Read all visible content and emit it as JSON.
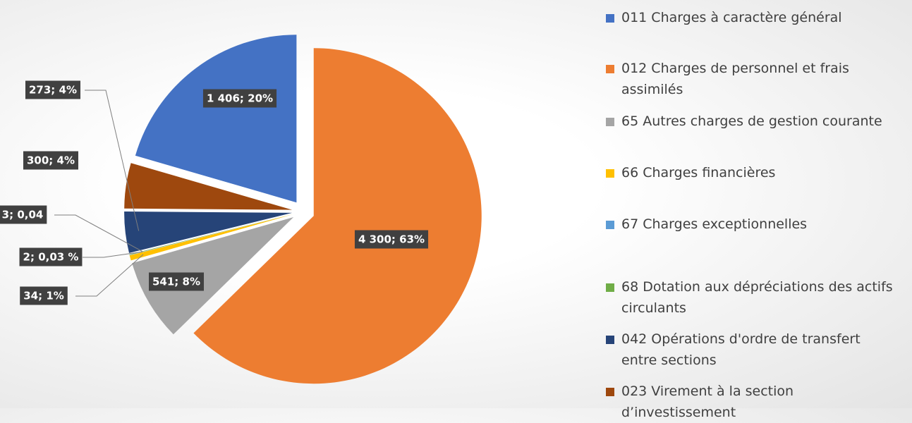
{
  "chart_data": {
    "type": "pie",
    "categories": [
      "011  Charges à caractère général",
      "012  Charges de personnel et frais assimilés",
      "65  Autres charges de gestion courante",
      "66  Charges financières",
      "67  Charges exceptionnelles",
      "68 Dotation aux dépréciations des actifs circulants",
      "042  Opérations d'ordre de transfert entre sections",
      "023  Virement à la section d’investissement"
    ],
    "values": [
      1406,
      4300,
      541,
      34,
      2,
      3,
      273,
      300
    ],
    "value_labels": [
      "1 406; 20%",
      "4 300; 63%",
      "541; 8%",
      "34; 1%",
      "2; 0,03 %",
      "3; 0,04",
      "273; 4%",
      "300; 4%"
    ],
    "colors": [
      "#4472c4",
      "#ed7d31",
      "#a5a5a5",
      "#ffc000",
      "#5b9bd5",
      "#70ad47",
      "#264478",
      "#9e480e"
    ],
    "legend": "right"
  }
}
